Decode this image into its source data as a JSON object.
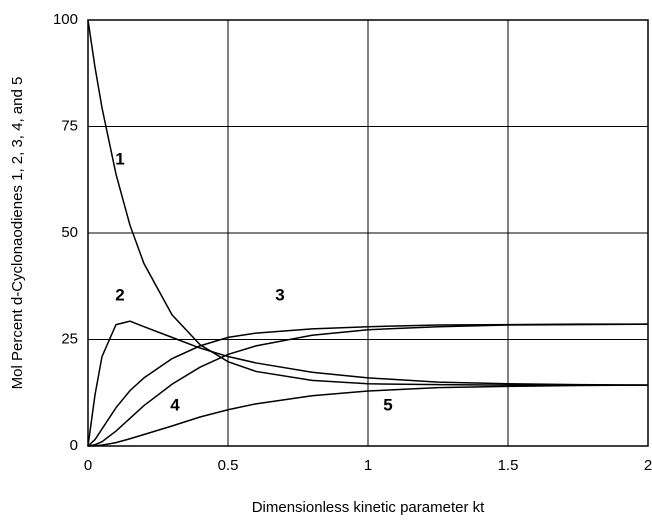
{
  "chart_data": {
    "type": "line",
    "xlabel": "Dimensionless kinetic parameter kt",
    "ylabel": "Mol Percent d-Cyclonaodienes 1, 2, 3, 4, and 5",
    "x": [
      0,
      0.025,
      0.05,
      0.1,
      0.15,
      0.2,
      0.3,
      0.4,
      0.5,
      0.6,
      0.8,
      1,
      1.25,
      1.5,
      1.75,
      2
    ],
    "series": [
      {
        "name": "1",
        "color": "#000000",
        "values": [
          100,
          88.9,
          79.4,
          63.8,
          51.8,
          42.8,
          30.8,
          23.8,
          19.8,
          17.5,
          15.4,
          14.6,
          14.4,
          14.3,
          14.3,
          14.3
        ]
      },
      {
        "name": "2",
        "color": "#000000",
        "values": [
          0,
          12,
          21,
          28.5,
          29.3,
          28,
          25.5,
          23,
          21,
          19.5,
          17.3,
          16,
          15,
          14.6,
          14.4,
          14.3
        ]
      },
      {
        "name": "3",
        "color": "#000000",
        "values": [
          0,
          1.5,
          4,
          9,
          13,
          16,
          20.5,
          23.5,
          25.5,
          26.5,
          27.5,
          28,
          28.4,
          28.5,
          28.6,
          28.6
        ]
      },
      {
        "name": "4",
        "color": "#000000",
        "values": [
          0,
          0.3,
          1,
          3.5,
          6.5,
          9.5,
          14.5,
          18.5,
          21.5,
          23.5,
          26,
          27.3,
          28,
          28.4,
          28.5,
          28.6
        ]
      },
      {
        "name": "5",
        "color": "#000000",
        "values": [
          0,
          0.05,
          0.2,
          0.8,
          1.7,
          2.7,
          4.7,
          6.8,
          8.5,
          9.9,
          11.8,
          12.9,
          13.7,
          14,
          14.2,
          14.3
        ]
      }
    ],
    "xlim": [
      0,
      2
    ],
    "xticks": [
      0,
      0.5,
      1,
      1.5,
      2
    ],
    "ylim": [
      0,
      100
    ],
    "yticks": [
      0,
      25,
      50,
      75,
      100
    ],
    "grid": true
  }
}
